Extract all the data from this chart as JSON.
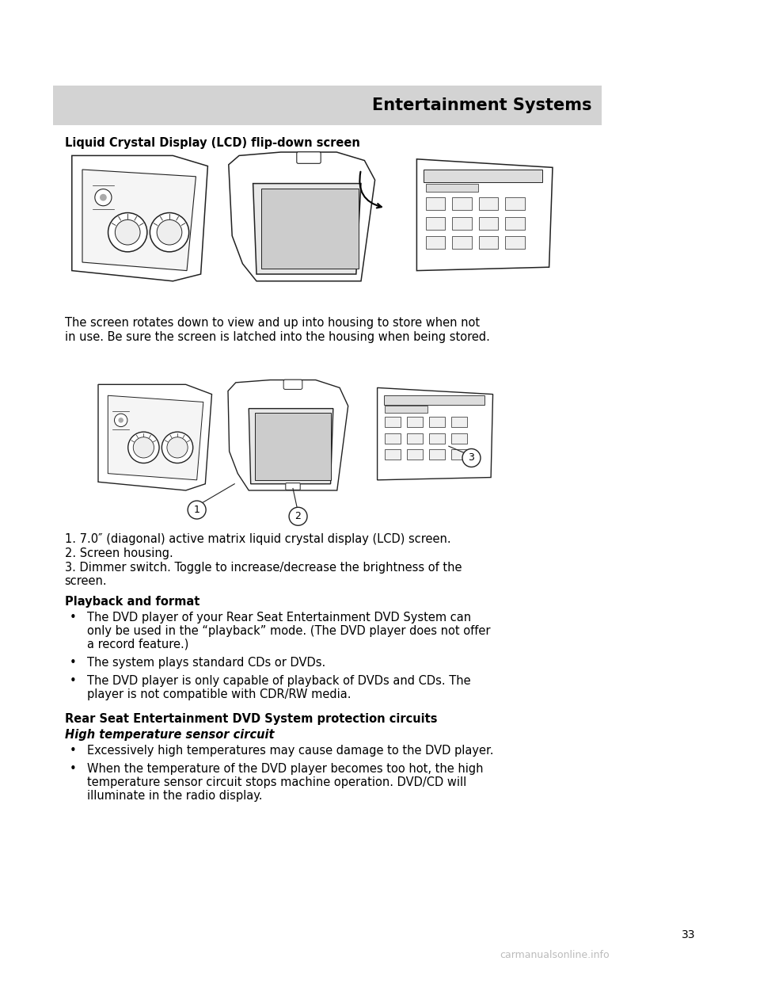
{
  "page_bg": "#ffffff",
  "header_bg": "#d3d3d3",
  "header_text": "Entertainment Systems",
  "header_text_color": "#000000",
  "header_fontsize": 15,
  "page_number": "33",
  "watermark": "carmanualsonline.info",
  "watermark_color": "#b0b0b0",
  "section_heading1": "Liquid Crystal Display (LCD) flip-down screen",
  "para1_line1": "The screen rotates down to view and up into housing to store when not",
  "para1_line2": "in use. Be sure the screen is latched into the housing when being stored.",
  "para1_fontsize": 10.5,
  "num_item1": "1. 7.0″ (diagonal) active matrix liquid crystal display (LCD) screen.",
  "num_item2": "2. Screen housing.",
  "num_item3a": "3. Dimmer switch. Toggle to increase/decrease the brightness of the",
  "num_item3b": "screen.",
  "playback_heading": "Playback and format",
  "bullet1a": "The DVD player of your Rear Seat Entertainment DVD System can",
  "bullet1b": "only be used in the “playback” mode. (The DVD player does not offer",
  "bullet1c": "a record feature.)",
  "bullet2": "The system plays standard CDs or DVDs.",
  "bullet3a": "The DVD player is only capable of playback of DVDs and CDs. The",
  "bullet3b": "player is not compatible with CDR/RW media.",
  "rear_seat_heading": "Rear Seat Entertainment DVD System protection circuits",
  "high_temp_heading": "High temperature sensor circuit",
  "ht_bullet1": "Excessively high temperatures may cause damage to the DVD player.",
  "ht_bullet2a": "When the temperature of the DVD player becomes too hot, the high",
  "ht_bullet2b": "temperature sensor circuit stops machine operation. DVD/CD will",
  "ht_bullet2c": "illuminate in the radio display.",
  "body_fontsize": 10.5,
  "lmargin": 0.085,
  "rmargin": 0.915,
  "indent": 0.115
}
